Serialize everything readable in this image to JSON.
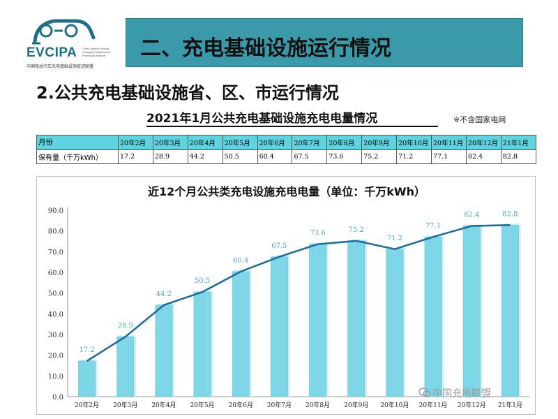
{
  "logo": {
    "text": "EVCIPA",
    "sub": "China Electric Vehicle Charging Infrastructure Promotion Alliance",
    "cn": "中国电动汽车充电基础设施促进联盟"
  },
  "header": {
    "title": "二、充电基础设施运行情况",
    "subtitle": "2.公共充电基础设施省、区、市运行情况"
  },
  "table": {
    "title": "2021年1月公共充电基础设施充电电量情况",
    "note": "※不含国家电网",
    "row_labels": [
      "月份",
      "保有量（千万kWh）"
    ],
    "months": [
      "20年2月",
      "20年3月",
      "20年4月",
      "20年5月",
      "20年6月",
      "20年7月",
      "20年8月",
      "20年9月",
      "20年10月",
      "20年11月",
      "20年12月",
      "21年1月"
    ],
    "values": [
      "17.2",
      "28.9",
      "44.2",
      "50.5",
      "60.4",
      "67.5",
      "73.6",
      "75.2",
      "71.2",
      "77.1",
      "82.4",
      "82.8"
    ]
  },
  "chart_data": {
    "type": "bar",
    "title": "近12个月公共类充电设施充电电量（单位：千万kWh）",
    "categories": [
      "20年2月",
      "20年3月",
      "20年4月",
      "20年5月",
      "20年6月",
      "20年7月",
      "20年8月",
      "20年9月",
      "20年10月",
      "20年11月",
      "20年12月",
      "21年1月"
    ],
    "values": [
      17.2,
      28.9,
      44.2,
      50.5,
      60.4,
      67.5,
      73.6,
      75.2,
      71.2,
      77.1,
      82.4,
      82.8
    ],
    "data_labels": [
      "17.2",
      "28.9",
      "44.2",
      "50.5",
      "60.4",
      "67.5",
      "73.6",
      "75.2",
      "71.2",
      "77.1",
      "82.4",
      "82.8"
    ],
    "overlay_line": true,
    "ylim": [
      0,
      90
    ],
    "yticks": [
      "0.0",
      "10.0",
      "20.0",
      "30.0",
      "40.0",
      "50.0",
      "60.0",
      "70.0",
      "80.0",
      "90.0"
    ],
    "grid": false,
    "xlabel": "",
    "ylabel": "",
    "colors": {
      "bar": "#7fd6e6",
      "bar_edge": "#5bc4d8",
      "line": "#1f6e9c",
      "label": "#4aa8c8"
    }
  },
  "watermark": "中国充电联盟"
}
